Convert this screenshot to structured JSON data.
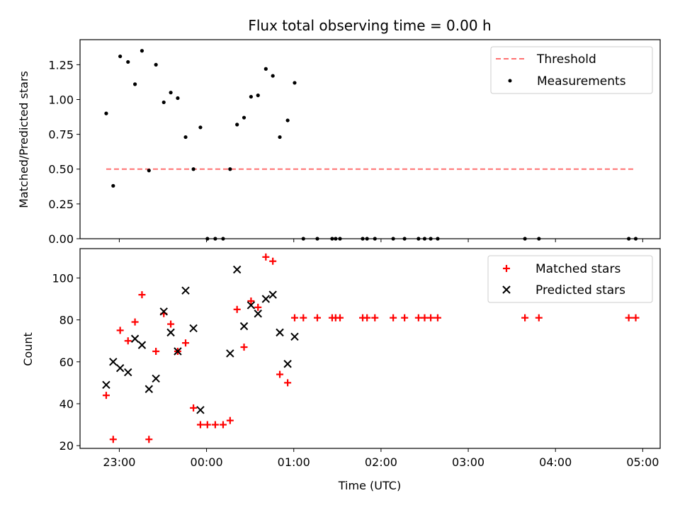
{
  "chart_data": [
    {
      "type": "scatter",
      "title": "Flux total observing time = 0.00 h",
      "xlabel": "",
      "ylabel": "Matched/Predicted stars",
      "xlim": [
        -0.45,
        6.2
      ],
      "ylim": [
        0,
        1.43
      ],
      "yticks": [
        0,
        0.25,
        0.5,
        0.75,
        1.0,
        1.25
      ],
      "ytick_labels": [
        "0.00",
        "0.25",
        "0.50",
        "0.75",
        "1.00",
        "1.25"
      ],
      "threshold": {
        "name": "Threshold",
        "y": 0.5,
        "x_range": [
          -0.15,
          5.9
        ],
        "color": "#ff7070"
      },
      "series": [
        {
          "name": "Measurements",
          "color": "#000000",
          "marker": "dot",
          "points": [
            [
              -0.15,
              0.9
            ],
            [
              -0.07,
              0.38
            ],
            [
              0.01,
              1.31
            ],
            [
              0.1,
              1.27
            ],
            [
              0.18,
              1.11
            ],
            [
              0.26,
              1.35
            ],
            [
              0.34,
              0.49
            ],
            [
              0.42,
              1.25
            ],
            [
              0.51,
              0.98
            ],
            [
              0.59,
              1.05
            ],
            [
              0.67,
              1.01
            ],
            [
              0.76,
              0.73
            ],
            [
              0.85,
              0.5
            ],
            [
              0.93,
              0.8
            ],
            [
              1.01,
              0
            ],
            [
              1.1,
              0
            ],
            [
              1.19,
              0
            ],
            [
              1.27,
              0.5
            ],
            [
              1.35,
              0.82
            ],
            [
              1.43,
              0.87
            ],
            [
              1.51,
              1.02
            ],
            [
              1.59,
              1.03
            ],
            [
              1.68,
              1.22
            ],
            [
              1.76,
              1.17
            ],
            [
              1.84,
              0.73
            ],
            [
              1.93,
              0.85
            ],
            [
              2.01,
              1.12
            ],
            [
              2.11,
              0
            ],
            [
              2.27,
              0
            ],
            [
              2.44,
              0
            ],
            [
              2.48,
              0
            ],
            [
              2.53,
              0
            ],
            [
              2.79,
              0
            ],
            [
              2.84,
              0
            ],
            [
              2.93,
              0
            ],
            [
              3.14,
              0
            ],
            [
              3.27,
              0
            ],
            [
              3.43,
              0
            ],
            [
              3.5,
              0
            ],
            [
              3.57,
              0
            ],
            [
              3.65,
              0
            ],
            [
              4.65,
              0
            ],
            [
              4.81,
              0
            ],
            [
              5.84,
              0
            ],
            [
              5.92,
              0
            ]
          ]
        }
      ]
    },
    {
      "type": "scatter",
      "title": "",
      "xlabel": "Time (UTC)",
      "ylabel": "Count",
      "xlim": [
        -0.45,
        6.2
      ],
      "ylim": [
        18.7,
        114
      ],
      "yticks": [
        20,
        40,
        60,
        80,
        100
      ],
      "ytick_labels": [
        "20",
        "40",
        "60",
        "80",
        "100"
      ],
      "xticks": [
        0,
        1,
        2,
        3,
        4,
        5,
        6
      ],
      "xtick_labels": [
        "23:00",
        "00:00",
        "01:00",
        "02:00",
        "03:00",
        "04:00",
        "05:00"
      ],
      "series": [
        {
          "name": "Matched stars",
          "color": "#ff0000",
          "marker": "plus",
          "points": [
            [
              -0.15,
              44
            ],
            [
              -0.07,
              23
            ],
            [
              0.01,
              75
            ],
            [
              0.1,
              70
            ],
            [
              0.18,
              79
            ],
            [
              0.26,
              92
            ],
            [
              0.34,
              23
            ],
            [
              0.42,
              65
            ],
            [
              0.51,
              83
            ],
            [
              0.59,
              78
            ],
            [
              0.67,
              65
            ],
            [
              0.76,
              69
            ],
            [
              0.85,
              38
            ],
            [
              0.93,
              30
            ],
            [
              1.01,
              30
            ],
            [
              1.1,
              30
            ],
            [
              1.19,
              30
            ],
            [
              1.27,
              32
            ],
            [
              1.35,
              85
            ],
            [
              1.43,
              67
            ],
            [
              1.51,
              89
            ],
            [
              1.59,
              86
            ],
            [
              1.68,
              110
            ],
            [
              1.76,
              108
            ],
            [
              1.84,
              54
            ],
            [
              1.93,
              50
            ],
            [
              2.01,
              81
            ],
            [
              2.11,
              81
            ],
            [
              2.27,
              81
            ],
            [
              2.44,
              81
            ],
            [
              2.48,
              81
            ],
            [
              2.53,
              81
            ],
            [
              2.79,
              81
            ],
            [
              2.84,
              81
            ],
            [
              2.93,
              81
            ],
            [
              3.14,
              81
            ],
            [
              3.27,
              81
            ],
            [
              3.43,
              81
            ],
            [
              3.5,
              81
            ],
            [
              3.57,
              81
            ],
            [
              3.65,
              81
            ],
            [
              4.65,
              81
            ],
            [
              4.81,
              81
            ],
            [
              5.84,
              81
            ],
            [
              5.92,
              81
            ]
          ]
        },
        {
          "name": "Predicted stars",
          "color": "#000000",
          "marker": "x",
          "points": [
            [
              -0.15,
              49
            ],
            [
              -0.07,
              60
            ],
            [
              0.01,
              57
            ],
            [
              0.1,
              55
            ],
            [
              0.18,
              71
            ],
            [
              0.26,
              68
            ],
            [
              0.34,
              47
            ],
            [
              0.42,
              52
            ],
            [
              0.51,
              84
            ],
            [
              0.59,
              74
            ],
            [
              0.67,
              65
            ],
            [
              0.76,
              94
            ],
            [
              0.85,
              76
            ],
            [
              0.93,
              37
            ],
            [
              1.27,
              64
            ],
            [
              1.35,
              104
            ],
            [
              1.43,
              77
            ],
            [
              1.51,
              87
            ],
            [
              1.59,
              83
            ],
            [
              1.68,
              90
            ],
            [
              1.76,
              92
            ],
            [
              1.84,
              74
            ],
            [
              1.93,
              59
            ],
            [
              2.01,
              72
            ]
          ]
        }
      ]
    }
  ]
}
